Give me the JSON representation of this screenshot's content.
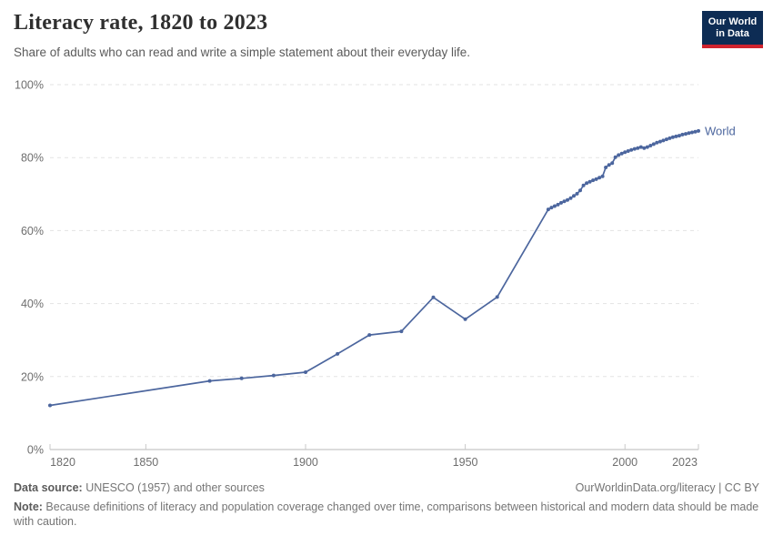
{
  "header": {
    "title": "Literacy rate, 1820 to 2023",
    "subtitle": "Share of adults who can read and write a simple statement about their everyday life.",
    "logo": {
      "line1": "Our World",
      "line2": "in Data"
    }
  },
  "colors": {
    "line": "#4c669e",
    "logo_navy": "#0d2c54",
    "logo_red": "#d0232e",
    "gridline": "#e3e3e3",
    "axis_text": "#6e6e6e"
  },
  "chart_data": {
    "type": "line",
    "title": "Literacy rate, 1820 to 2023",
    "xlabel": "",
    "ylabel": "",
    "xlim": [
      1820,
      2023
    ],
    "ylim": [
      0,
      100
    ],
    "x_ticks": [
      1820,
      1850,
      1900,
      1950,
      2000,
      2023
    ],
    "y_ticks": [
      0,
      20,
      40,
      60,
      80,
      100
    ],
    "y_tick_suffix": "%",
    "grid": "horizontal-dashed",
    "legend_position": "end-of-line-label",
    "series": [
      {
        "name": "World",
        "color": "#4c669e",
        "points": [
          [
            1820,
            12.1
          ],
          [
            1870,
            18.8
          ],
          [
            1880,
            19.5
          ],
          [
            1890,
            20.3
          ],
          [
            1900,
            21.2
          ],
          [
            1910,
            26.2
          ],
          [
            1920,
            31.4
          ],
          [
            1930,
            32.4
          ],
          [
            1940,
            41.7
          ],
          [
            1950,
            35.7
          ],
          [
            1960,
            41.8
          ],
          [
            1976,
            65.8
          ],
          [
            1977,
            66.3
          ],
          [
            1978,
            66.7
          ],
          [
            1979,
            67.1
          ],
          [
            1980,
            67.6
          ],
          [
            1981,
            68.0
          ],
          [
            1982,
            68.4
          ],
          [
            1983,
            68.9
          ],
          [
            1984,
            69.5
          ],
          [
            1985,
            70.1
          ],
          [
            1986,
            71.0
          ],
          [
            1987,
            72.4
          ],
          [
            1988,
            73.0
          ],
          [
            1989,
            73.4
          ],
          [
            1990,
            73.8
          ],
          [
            1991,
            74.1
          ],
          [
            1992,
            74.5
          ],
          [
            1993,
            74.9
          ],
          [
            1994,
            77.3
          ],
          [
            1995,
            78.0
          ],
          [
            1996,
            78.5
          ],
          [
            1997,
            80.1
          ],
          [
            1998,
            80.7
          ],
          [
            1999,
            81.1
          ],
          [
            2000,
            81.5
          ],
          [
            2001,
            81.8
          ],
          [
            2002,
            82.1
          ],
          [
            2003,
            82.4
          ],
          [
            2004,
            82.6
          ],
          [
            2005,
            82.9
          ],
          [
            2006,
            82.6
          ],
          [
            2007,
            82.9
          ],
          [
            2008,
            83.3
          ],
          [
            2009,
            83.7
          ],
          [
            2010,
            84.1
          ],
          [
            2011,
            84.4
          ],
          [
            2012,
            84.7
          ],
          [
            2013,
            85.0
          ],
          [
            2014,
            85.3
          ],
          [
            2015,
            85.6
          ],
          [
            2016,
            85.8
          ],
          [
            2017,
            86.0
          ],
          [
            2018,
            86.3
          ],
          [
            2019,
            86.5
          ],
          [
            2020,
            86.7
          ],
          [
            2021,
            86.9
          ],
          [
            2022,
            87.1
          ],
          [
            2023,
            87.3
          ]
        ]
      }
    ]
  },
  "footer": {
    "source_label": "Data source:",
    "source_text": " UNESCO (1957) and other sources",
    "credit": "OurWorldinData.org/literacy | CC BY",
    "note_label": "Note:",
    "note_text": " Because definitions of literacy and population coverage changed over time, comparisons between historical and modern data should be made with caution."
  }
}
